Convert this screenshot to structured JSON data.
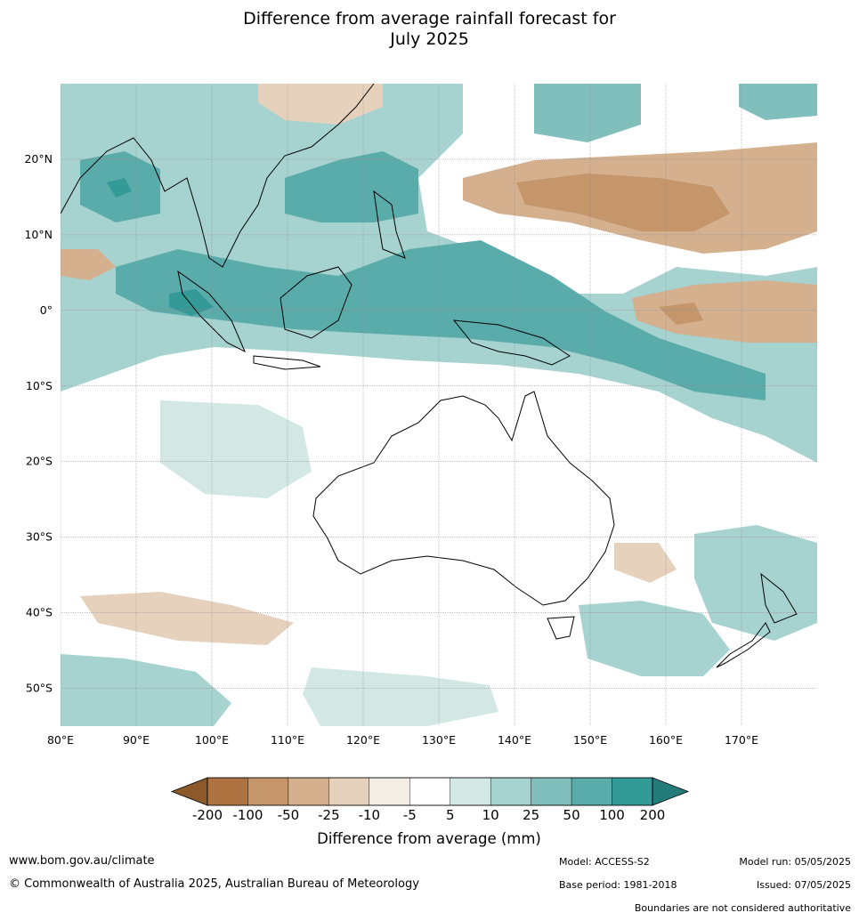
{
  "title": {
    "line1": "Difference from average rainfall forecast for",
    "line2": "July 2025"
  },
  "map": {
    "lat_labels": [
      "20°N",
      "10°N",
      "0°",
      "10°S",
      "20°S",
      "30°S",
      "40°S",
      "50°S"
    ],
    "lon_labels": [
      "80°E",
      "90°E",
      "100°E",
      "110°E",
      "120°E",
      "130°E",
      "140°E",
      "150°E",
      "160°E",
      "170°E"
    ],
    "lat_values": [
      20,
      10,
      0,
      -10,
      -20,
      -30,
      -40,
      -50
    ],
    "lon_values": [
      80,
      90,
      100,
      110,
      120,
      130,
      140,
      150,
      160,
      170
    ],
    "lon_range": [
      80,
      180
    ],
    "lat_range": [
      -55,
      30
    ]
  },
  "legend": {
    "title": "Difference from average (mm)",
    "labels": [
      "-200",
      "-100",
      "-50",
      "-25",
      "-10",
      "-5",
      "5",
      "10",
      "25",
      "50",
      "100",
      "200"
    ],
    "colors": [
      "#8c5a2a",
      "#ad7441",
      "#c4966a",
      "#d4b08f",
      "#e6d1bd",
      "#f3ede6",
      "#ffffff",
      "#d3e8e5",
      "#a6d2cf",
      "#81bfbc",
      "#5aacaa",
      "#339a98",
      "#237c7a"
    ]
  },
  "footer": {
    "website": "www.bom.gov.au/climate",
    "copyright": "© Commonwealth of Australia 2025, Australian Bureau of Meteorology",
    "model": "Model: ACCESS-S2",
    "base_period": "Base period: 1981-2018",
    "model_run": "Model run: 05/05/2025",
    "issued": "Issued: 07/05/2025",
    "disclaimer": "Boundaries are not considered authoritative"
  }
}
